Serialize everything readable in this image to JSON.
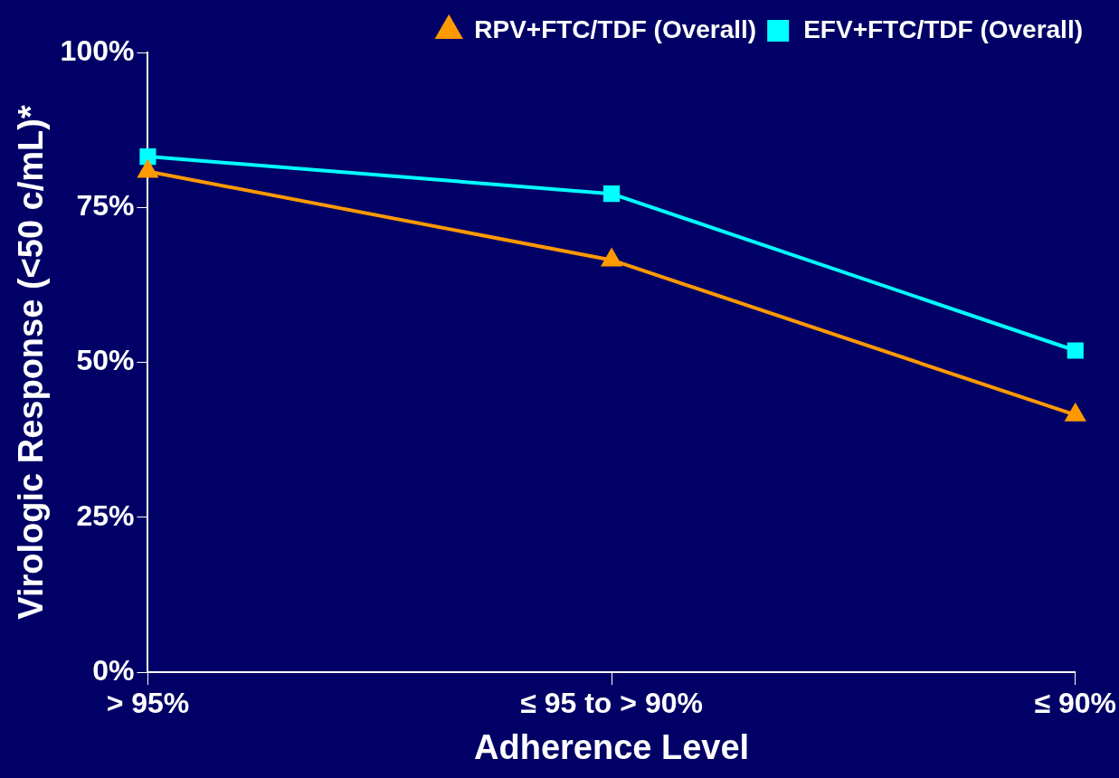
{
  "chart_data": {
    "type": "line",
    "xlabel": "Adherence Level",
    "ylabel": "Virologic Response (<50 c/mL)*",
    "categories": [
      "> 95%",
      "≤ 95 to > 90%",
      "≤ 90%"
    ],
    "series": [
      {
        "name": "RPV+FTC/TDF (Overall)",
        "color": "#ff9900",
        "marker": "triangle",
        "values": [
          80.8,
          66.5,
          41.5
        ]
      },
      {
        "name": "EFV+FTC/TDF (Overall)",
        "color": "#00ffff",
        "marker": "square",
        "values": [
          83.2,
          77.2,
          51.9
        ]
      }
    ],
    "ylim": [
      0,
      100
    ],
    "yticks": [
      {
        "value": 0,
        "label": "0%"
      },
      {
        "value": 25,
        "label": "25%"
      },
      {
        "value": 50,
        "label": "50%"
      },
      {
        "value": 75,
        "label": "75%"
      },
      {
        "value": 100,
        "label": "100%"
      }
    ],
    "grid": false,
    "legend": "top right",
    "line_style": "solid"
  }
}
